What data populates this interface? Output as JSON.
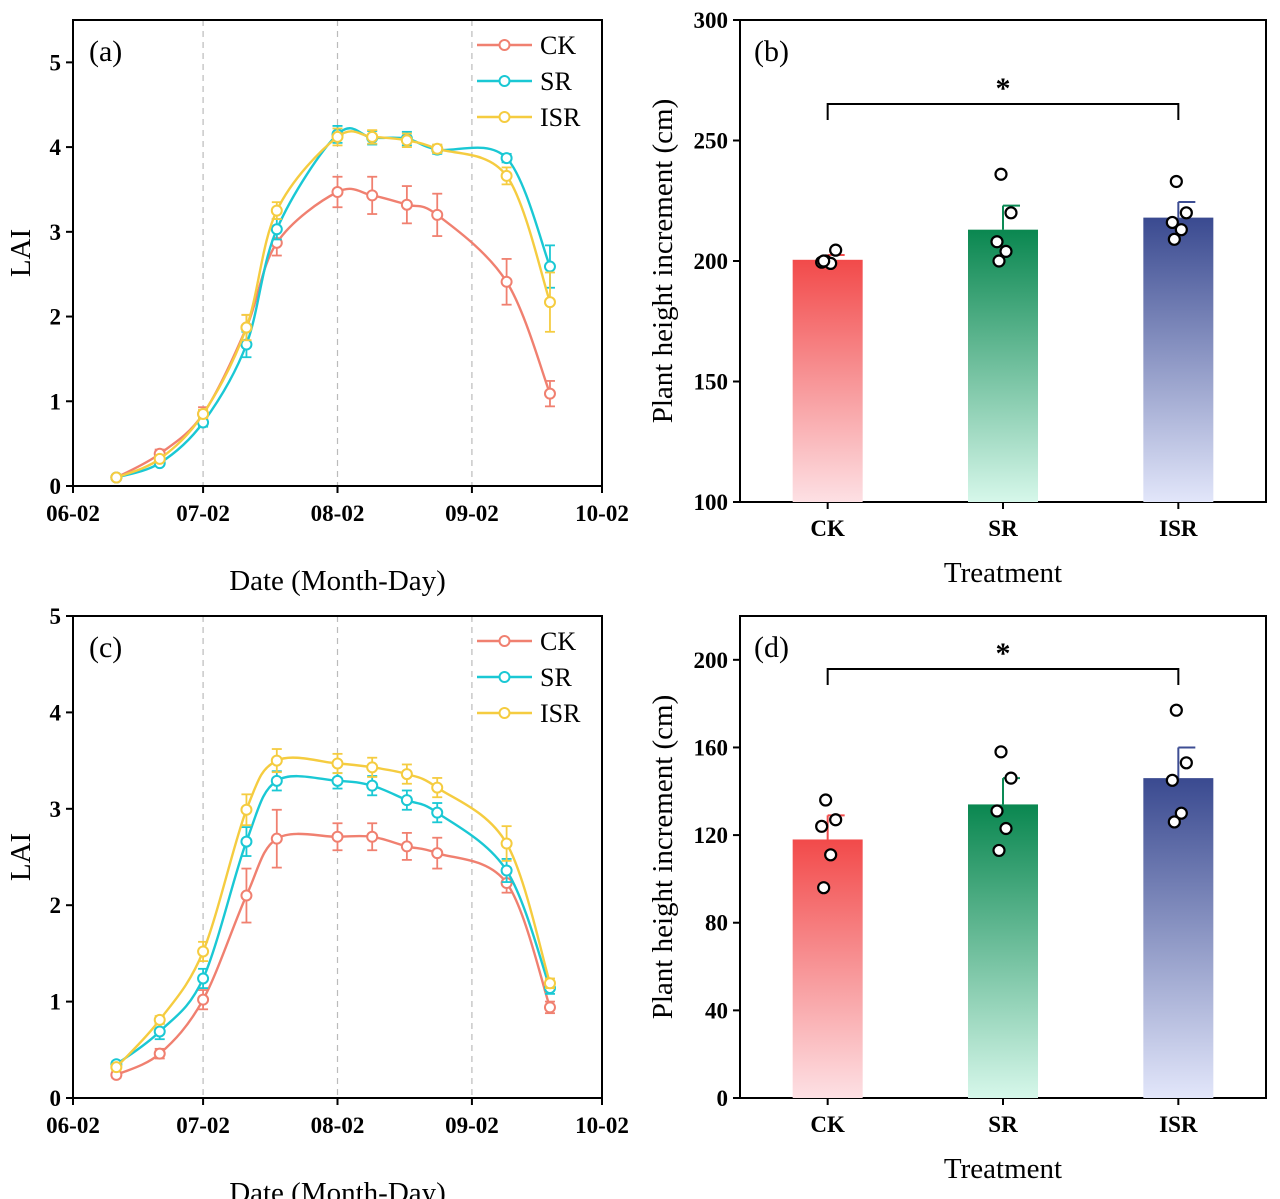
{
  "chart_data": [
    {
      "id": "a",
      "type": "line",
      "panel_label": "(a)",
      "xlabel": "Date (Month-Day)",
      "ylabel": "LAI",
      "x_ticks": [
        "06-02",
        "07-02",
        "08-02",
        "09-02",
        "10-02"
      ],
      "y_ticks": [
        "0",
        "1",
        "2",
        "3",
        "4",
        "5"
      ],
      "ylim": [
        0,
        5.5
      ],
      "legend_position": "top-right",
      "vertical_gridlines_at": [
        "07-02",
        "08-02",
        "09-02"
      ],
      "x": [
        "06-12",
        "06-22",
        "07-02",
        "07-12",
        "07-19",
        "08-02",
        "08-10",
        "08-18",
        "08-25",
        "09-10",
        "09-20"
      ],
      "series": [
        {
          "name": "CK",
          "color": "#f08070",
          "values": [
            0.1,
            0.38,
            0.85,
            1.87,
            2.87,
            3.47,
            3.43,
            3.32,
            3.2,
            2.41,
            1.09
          ],
          "errors": [
            0.02,
            0.05,
            0.08,
            0.15,
            0.15,
            0.18,
            0.22,
            0.22,
            0.25,
            0.27,
            0.15
          ]
        },
        {
          "name": "SR",
          "color": "#1ac8d4",
          "values": [
            0.1,
            0.27,
            0.75,
            1.67,
            3.03,
            4.15,
            4.11,
            4.1,
            3.97,
            3.87,
            2.59
          ],
          "errors": [
            0.02,
            0.03,
            0.05,
            0.15,
            0.12,
            0.1,
            0.08,
            0.08,
            0.05,
            0.05,
            0.25
          ]
        },
        {
          "name": "ISR",
          "color": "#f5cc40",
          "values": [
            0.1,
            0.32,
            0.85,
            1.87,
            3.25,
            4.12,
            4.12,
            4.08,
            3.98,
            3.66,
            2.17
          ],
          "errors": [
            0.02,
            0.03,
            0.05,
            0.15,
            0.1,
            0.1,
            0.08,
            0.08,
            0.05,
            0.1,
            0.35
          ]
        }
      ]
    },
    {
      "id": "b",
      "type": "bar",
      "panel_label": "(b)",
      "xlabel": "Treatment",
      "ylabel": "Plant height increment (cm)",
      "categories": [
        "CK",
        "SR",
        "ISR"
      ],
      "values": [
        200.5,
        213,
        218
      ],
      "errors": [
        2,
        10,
        6.5
      ],
      "points": [
        [
          200,
          204.5,
          199.5,
          199,
          200
        ],
        [
          236,
          220,
          208,
          204,
          200
        ],
        [
          233,
          220,
          216,
          213,
          209
        ]
      ],
      "y_ticks": [
        "100",
        "150",
        "200",
        "250",
        "300"
      ],
      "ylim": [
        100,
        300
      ],
      "significance": "*",
      "colors": [
        "#f24e4e",
        "#0c8a55",
        "#3d4d93"
      ]
    },
    {
      "id": "c",
      "type": "line",
      "panel_label": "(c)",
      "xlabel": "Date (Month-Day)",
      "ylabel": "LAI",
      "x_ticks": [
        "06-02",
        "07-02",
        "08-02",
        "09-02",
        "10-02"
      ],
      "y_ticks": [
        "0",
        "1",
        "2",
        "3",
        "4",
        "5"
      ],
      "ylim": [
        0,
        5
      ],
      "legend_position": "top-right",
      "vertical_gridlines_at": [
        "07-02",
        "08-02",
        "09-02"
      ],
      "x": [
        "06-12",
        "06-22",
        "07-02",
        "07-12",
        "07-19",
        "08-02",
        "08-10",
        "08-18",
        "08-25",
        "09-10",
        "09-20"
      ],
      "series": [
        {
          "name": "CK",
          "color": "#f08070",
          "values": [
            0.24,
            0.46,
            1.02,
            2.1,
            2.69,
            2.71,
            2.71,
            2.61,
            2.54,
            2.23,
            0.94
          ],
          "errors": [
            0.03,
            0.05,
            0.1,
            0.28,
            0.3,
            0.14,
            0.14,
            0.14,
            0.16,
            0.1,
            0.06
          ]
        },
        {
          "name": "SR",
          "color": "#1ac8d4",
          "values": [
            0.35,
            0.69,
            1.24,
            2.66,
            3.29,
            3.29,
            3.24,
            3.09,
            2.96,
            2.36,
            1.14
          ],
          "errors": [
            0.03,
            0.08,
            0.1,
            0.15,
            0.1,
            0.08,
            0.1,
            0.1,
            0.1,
            0.12,
            0.06
          ]
        },
        {
          "name": "ISR",
          "color": "#f5cc40",
          "values": [
            0.32,
            0.81,
            1.52,
            2.99,
            3.5,
            3.47,
            3.43,
            3.36,
            3.22,
            2.64,
            1.19
          ],
          "errors": [
            0.03,
            0.04,
            0.1,
            0.16,
            0.12,
            0.1,
            0.1,
            0.1,
            0.1,
            0.18,
            0.05
          ]
        }
      ]
    },
    {
      "id": "d",
      "type": "bar",
      "panel_label": "(d)",
      "xlabel": "Treatment",
      "ylabel": "Plant height increment (cm)",
      "categories": [
        "CK",
        "SR",
        "ISR"
      ],
      "values": [
        118,
        134,
        146
      ],
      "errors": [
        11,
        12,
        14
      ],
      "points": [
        [
          136,
          127,
          124,
          111,
          96
        ],
        [
          158,
          146,
          131,
          123,
          113
        ],
        [
          177,
          153,
          145,
          130,
          126
        ]
      ],
      "y_ticks": [
        "0",
        "40",
        "80",
        "120",
        "160",
        "200"
      ],
      "ylim": [
        0,
        220
      ],
      "significance": "*",
      "colors": [
        "#f24e4e",
        "#0c8a55",
        "#3d4d93"
      ]
    }
  ]
}
